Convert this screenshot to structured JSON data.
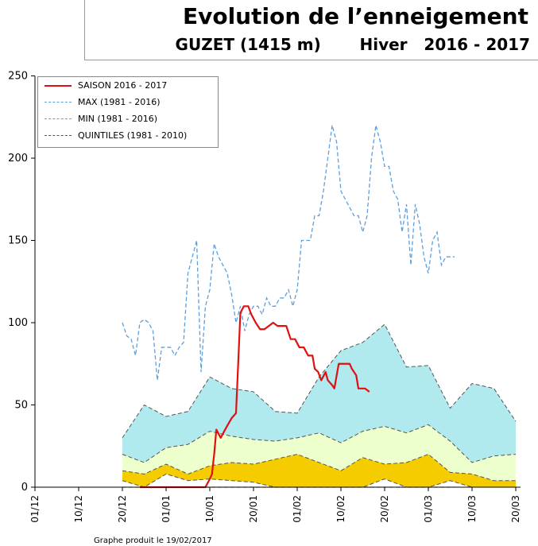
{
  "header": {
    "title": "Evolution de l’enneigement",
    "station": "GUZET (1415 m)",
    "season_label": "Hiver   2016 - 2017"
  },
  "footer": {
    "text": "Graphe produit le 19/02/2017"
  },
  "legend": {
    "items": [
      {
        "label": "SAISON 2016 - 2017",
        "color": "#e01010",
        "style": "solid"
      },
      {
        "label": "MAX (1981 - 2016)",
        "color": "#5aa0e0",
        "style": "dashed"
      },
      {
        "label": "MIN (1981 - 2016)",
        "color": "#d08050",
        "style": "dashed"
      },
      {
        "label": "QUINTILES (1981 - 2010)",
        "color": "#555555",
        "style": "dashed"
      }
    ]
  },
  "chart_data": {
    "type": "area",
    "x_tick_labels": [
      "01/12",
      "10/12",
      "20/12",
      "01/01",
      "10/01",
      "20/01",
      "01/02",
      "10/02",
      "20/02",
      "01/03",
      "10/03",
      "20/03"
    ],
    "ylim": [
      0,
      250
    ],
    "y_ticks": [
      0,
      50,
      100,
      150,
      200,
      250
    ],
    "colors": {
      "q20_40": "#f5cc00",
      "q40_60": "#ecffcc",
      "q60_80": "#b0eaee"
    },
    "quintiles": {
      "days": [
        20,
        25,
        30,
        35,
        40,
        45,
        50,
        55,
        60,
        65,
        70,
        75,
        80,
        85,
        90,
        95,
        100,
        105,
        110
      ],
      "q0": [
        4,
        0,
        8,
        4,
        5,
        4,
        3,
        0,
        0,
        0,
        0,
        0,
        5,
        0,
        0,
        4,
        0,
        0,
        0
      ],
      "q20": [
        10,
        8,
        14,
        8,
        13,
        15,
        14,
        17,
        20,
        15,
        10,
        18,
        14,
        15,
        20,
        9,
        8,
        4,
        4
      ],
      "q40": [
        20,
        15,
        24,
        26,
        34,
        31,
        29,
        28,
        30,
        33,
        27,
        34,
        37,
        33,
        38,
        28,
        15,
        19,
        20
      ],
      "q60": [
        30,
        50,
        43,
        46,
        67,
        60,
        58,
        46,
        45,
        67,
        83,
        88,
        99,
        73,
        74,
        48,
        63,
        60,
        40
      ]
    },
    "series": [
      {
        "name": "SAISON 2016 - 2017",
        "points": [
          [
            24,
            0
          ],
          [
            39,
            0
          ],
          [
            40,
            5
          ],
          [
            40.5,
            8
          ],
          [
            41,
            20
          ],
          [
            41.5,
            35
          ],
          [
            42.5,
            30
          ],
          [
            43.5,
            35
          ],
          [
            45,
            42
          ],
          [
            46,
            45
          ],
          [
            47,
            106
          ],
          [
            47.8,
            110
          ],
          [
            48.8,
            110
          ],
          [
            49.5,
            105
          ],
          [
            50.5,
            100
          ],
          [
            51.5,
            96
          ],
          [
            52.5,
            96
          ],
          [
            53.5,
            98
          ],
          [
            54.5,
            100
          ],
          [
            55.5,
            98
          ],
          [
            56.5,
            98
          ],
          [
            57.5,
            98
          ],
          [
            58.5,
            90
          ],
          [
            59.5,
            90
          ],
          [
            60.5,
            85
          ],
          [
            61.5,
            85
          ],
          [
            62.5,
            80
          ],
          [
            63.5,
            80
          ],
          [
            64,
            72
          ],
          [
            64.8,
            70
          ],
          [
            65.5,
            65
          ],
          [
            66.5,
            70
          ],
          [
            67,
            65
          ],
          [
            68,
            62
          ],
          [
            68.5,
            60
          ],
          [
            69.5,
            75
          ],
          [
            71.5,
            75
          ],
          [
            72,
            75
          ],
          [
            72.5,
            72
          ],
          [
            73,
            70
          ],
          [
            73.5,
            68
          ],
          [
            74,
            60
          ],
          [
            75.5,
            60
          ],
          [
            76.5,
            58
          ]
        ]
      },
      {
        "name": "MAX (1981 - 2016)",
        "points": [
          [
            20,
            100
          ],
          [
            21,
            92
          ],
          [
            22,
            90
          ],
          [
            23,
            80
          ],
          [
            24,
            100
          ],
          [
            25,
            102
          ],
          [
            26,
            100
          ],
          [
            27,
            95
          ],
          [
            28,
            65
          ],
          [
            29,
            85
          ],
          [
            30,
            85
          ],
          [
            31,
            85
          ],
          [
            32,
            80
          ],
          [
            33,
            85
          ],
          [
            34,
            88
          ],
          [
            35,
            130
          ],
          [
            36,
            140
          ],
          [
            37,
            150
          ],
          [
            38,
            70
          ],
          [
            39,
            110
          ],
          [
            40,
            120
          ],
          [
            41,
            148
          ],
          [
            42,
            140
          ],
          [
            43,
            135
          ],
          [
            44,
            130
          ],
          [
            45,
            117
          ],
          [
            46,
            100
          ],
          [
            47,
            110
          ],
          [
            48,
            95
          ],
          [
            49,
            105
          ],
          [
            50,
            110
          ],
          [
            51,
            110
          ],
          [
            52,
            105
          ],
          [
            53,
            115
          ],
          [
            54,
            110
          ],
          [
            55,
            110
          ],
          [
            56,
            115
          ],
          [
            57,
            115
          ],
          [
            58,
            120
          ],
          [
            59,
            110
          ],
          [
            60,
            120
          ],
          [
            61,
            150
          ],
          [
            62,
            150
          ],
          [
            63,
            150
          ],
          [
            64,
            165
          ],
          [
            65,
            165
          ],
          [
            66,
            180
          ],
          [
            67,
            200
          ],
          [
            68,
            220
          ],
          [
            69,
            210
          ],
          [
            70,
            180
          ],
          [
            71,
            175
          ],
          [
            72,
            170
          ],
          [
            73,
            165
          ],
          [
            74,
            165
          ],
          [
            75,
            155
          ],
          [
            76,
            165
          ],
          [
            77,
            200
          ],
          [
            78,
            220
          ],
          [
            79,
            210
          ],
          [
            80,
            195
          ],
          [
            81,
            195
          ],
          [
            82,
            180
          ],
          [
            83,
            175
          ],
          [
            84,
            155
          ],
          [
            85,
            172
          ],
          [
            86,
            135
          ],
          [
            87,
            172
          ],
          [
            88,
            160
          ],
          [
            89,
            140
          ],
          [
            90,
            130
          ],
          [
            91,
            150
          ],
          [
            92,
            155
          ],
          [
            93,
            135
          ],
          [
            94,
            140
          ],
          [
            95,
            140
          ],
          [
            96,
            140
          ]
        ]
      },
      {
        "name": "MIN (1981 - 2016)",
        "points": [
          [
            20,
            0
          ],
          [
            96,
            0
          ]
        ]
      }
    ]
  }
}
